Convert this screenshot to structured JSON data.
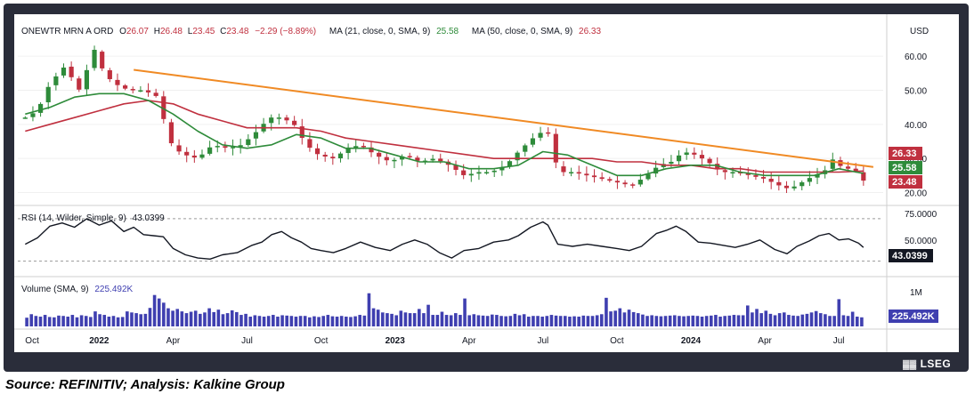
{
  "chart_data": {
    "type": "candlestick",
    "symbol": "ONEWTR MRN A ORD",
    "currency": "USD",
    "ohlc": {
      "o_label": "O",
      "o": "26.07",
      "h_label": "H",
      "h": "26.48",
      "l_label": "L",
      "l": "23.45",
      "c_label": "C",
      "c": "23.48",
      "change": "−2.29 (−8.89%)"
    },
    "ma21": {
      "label": "MA (21, close, 0, SMA, 9)",
      "value": "25.58",
      "color": "#2e8b3a"
    },
    "ma50": {
      "label": "MA (50, close, 0, SMA, 9)",
      "value": "26.33",
      "color": "#c0303f"
    },
    "last_close_tag": "23.48",
    "trendline_color": "#f08a24",
    "price_axis": {
      "ticks": [
        "60.00",
        "50.00",
        "40.00",
        "30.00",
        "20.00"
      ],
      "values": [
        60,
        50,
        40,
        30,
        20
      ],
      "ylim": [
        17,
        65
      ]
    },
    "x_ticks": [
      "Oct",
      "2022",
      "Apr",
      "Jul",
      "Oct",
      "2023",
      "Apr",
      "Jul",
      "Oct",
      "2024",
      "Apr",
      "Jul"
    ],
    "x_tick_pos": [
      0,
      3,
      6,
      9,
      12,
      15,
      18,
      21,
      24,
      27,
      30,
      33
    ],
    "x_range": [
      -0.3,
      34.8
    ],
    "price_path": [
      [
        0,
        42
      ],
      [
        0.5,
        44
      ],
      [
        1,
        52
      ],
      [
        1.6,
        57
      ],
      [
        2.2,
        50
      ],
      [
        2.8,
        62
      ],
      [
        3.2,
        55
      ],
      [
        3.6,
        52
      ],
      [
        4.2,
        50
      ],
      [
        4.8,
        50
      ],
      [
        5.4,
        48
      ],
      [
        5.7,
        39
      ],
      [
        6.0,
        33
      ],
      [
        6.5,
        31
      ],
      [
        7.0,
        30
      ],
      [
        7.6,
        34
      ],
      [
        8.2,
        33
      ],
      [
        8.8,
        34
      ],
      [
        9.4,
        38
      ],
      [
        9.9,
        42
      ],
      [
        10.4,
        42
      ],
      [
        10.9,
        40
      ],
      [
        11.4,
        34
      ],
      [
        11.9,
        31
      ],
      [
        12.5,
        30
      ],
      [
        13.1,
        33
      ],
      [
        13.6,
        34
      ],
      [
        14.2,
        31
      ],
      [
        14.8,
        29
      ],
      [
        15.4,
        31
      ],
      [
        16.0,
        29
      ],
      [
        16.6,
        30
      ],
      [
        17.2,
        28
      ],
      [
        17.8,
        25
      ],
      [
        18.4,
        26
      ],
      [
        18.9,
        26
      ],
      [
        19.5,
        28
      ],
      [
        20.0,
        32
      ],
      [
        20.6,
        36
      ],
      [
        21.0,
        38
      ],
      [
        21.3,
        37
      ],
      [
        21.6,
        26
      ],
      [
        22.2,
        26
      ],
      [
        22.8,
        25
      ],
      [
        23.4,
        24
      ],
      [
        24.0,
        23
      ],
      [
        24.6,
        22
      ],
      [
        25.2,
        25
      ],
      [
        25.7,
        28
      ],
      [
        26.2,
        29
      ],
      [
        26.7,
        32
      ],
      [
        27.2,
        31
      ],
      [
        27.7,
        29
      ],
      [
        28.2,
        26
      ],
      [
        28.8,
        26
      ],
      [
        29.4,
        25
      ],
      [
        30.0,
        24
      ],
      [
        30.6,
        22
      ],
      [
        31.0,
        21
      ],
      [
        31.5,
        23
      ],
      [
        32.0,
        25
      ],
      [
        32.4,
        26
      ],
      [
        32.7,
        30
      ],
      [
        33.2,
        27
      ],
      [
        33.6,
        27
      ],
      [
        34.0,
        23.5
      ]
    ],
    "ma21_path": [
      [
        0,
        43
      ],
      [
        1,
        45
      ],
      [
        2,
        48
      ],
      [
        3,
        49
      ],
      [
        4,
        49
      ],
      [
        5,
        47
      ],
      [
        6,
        43
      ],
      [
        7,
        38
      ],
      [
        8,
        34
      ],
      [
        9,
        33
      ],
      [
        10,
        34
      ],
      [
        11,
        37
      ],
      [
        12,
        36
      ],
      [
        13,
        33
      ],
      [
        14,
        33
      ],
      [
        15,
        31
      ],
      [
        16,
        29
      ],
      [
        17,
        29
      ],
      [
        18,
        27
      ],
      [
        19,
        27
      ],
      [
        20,
        28
      ],
      [
        21,
        32
      ],
      [
        22,
        31
      ],
      [
        23,
        28
      ],
      [
        24,
        25
      ],
      [
        25,
        25
      ],
      [
        26,
        27
      ],
      [
        27,
        28
      ],
      [
        28,
        28
      ],
      [
        29,
        26
      ],
      [
        30,
        25
      ],
      [
        31,
        25
      ],
      [
        32,
        25
      ],
      [
        33,
        27
      ],
      [
        34,
        25.6
      ]
    ],
    "ma50_path": [
      [
        0,
        38
      ],
      [
        1,
        40
      ],
      [
        2,
        42
      ],
      [
        3,
        44
      ],
      [
        4,
        46
      ],
      [
        5,
        47
      ],
      [
        6,
        46
      ],
      [
        7,
        43
      ],
      [
        8,
        41
      ],
      [
        9,
        39
      ],
      [
        10,
        39
      ],
      [
        11,
        39
      ],
      [
        12,
        38
      ],
      [
        13,
        36
      ],
      [
        14,
        35
      ],
      [
        15,
        34
      ],
      [
        16,
        33
      ],
      [
        17,
        32
      ],
      [
        18,
        31
      ],
      [
        19,
        30
      ],
      [
        20,
        30
      ],
      [
        21,
        30
      ],
      [
        22,
        30
      ],
      [
        23,
        30
      ],
      [
        24,
        29
      ],
      [
        25,
        29
      ],
      [
        26,
        28
      ],
      [
        27,
        28
      ],
      [
        28,
        27
      ],
      [
        29,
        27
      ],
      [
        30,
        26
      ],
      [
        31,
        26
      ],
      [
        32,
        26
      ],
      [
        33,
        26
      ],
      [
        34,
        26.3
      ]
    ],
    "trendline": [
      [
        4.4,
        56
      ],
      [
        34.4,
        27.5
      ]
    ],
    "rsi": {
      "label": "RSI (14, Wilder, Simple, 9)",
      "value": "43.0399",
      "ticks": [
        "75.0000",
        "50.0000"
      ],
      "tick_values": [
        75,
        50
      ],
      "ylim": [
        18,
        80
      ],
      "upper": 70,
      "lower": 30,
      "path": [
        [
          0,
          46
        ],
        [
          0.5,
          52
        ],
        [
          1,
          63
        ],
        [
          1.5,
          66
        ],
        [
          2,
          62
        ],
        [
          2.5,
          70
        ],
        [
          3,
          64
        ],
        [
          3.5,
          68
        ],
        [
          4,
          58
        ],
        [
          4.4,
          62
        ],
        [
          4.8,
          55
        ],
        [
          5.2,
          54
        ],
        [
          5.6,
          53
        ],
        [
          6,
          42
        ],
        [
          6.5,
          36
        ],
        [
          7,
          33
        ],
        [
          7.5,
          32
        ],
        [
          8,
          36
        ],
        [
          8.6,
          38
        ],
        [
          9.2,
          45
        ],
        [
          9.6,
          48
        ],
        [
          10,
          55
        ],
        [
          10.4,
          58
        ],
        [
          10.8,
          52
        ],
        [
          11.2,
          48
        ],
        [
          11.6,
          42
        ],
        [
          12,
          40
        ],
        [
          12.5,
          38
        ],
        [
          13,
          42
        ],
        [
          13.6,
          48
        ],
        [
          14.2,
          43
        ],
        [
          14.8,
          40
        ],
        [
          15.3,
          46
        ],
        [
          15.8,
          50
        ],
        [
          16.3,
          46
        ],
        [
          16.8,
          38
        ],
        [
          17.3,
          33
        ],
        [
          17.8,
          40
        ],
        [
          18.4,
          42
        ],
        [
          19,
          48
        ],
        [
          19.6,
          50
        ],
        [
          20.0,
          54
        ],
        [
          20.5,
          62
        ],
        [
          21.0,
          67
        ],
        [
          21.2,
          64
        ],
        [
          21.6,
          46
        ],
        [
          22.2,
          44
        ],
        [
          22.8,
          46
        ],
        [
          23.4,
          44
        ],
        [
          24,
          42
        ],
        [
          24.5,
          40
        ],
        [
          25,
          44
        ],
        [
          25.6,
          56
        ],
        [
          26,
          59
        ],
        [
          26.4,
          63
        ],
        [
          26.8,
          58
        ],
        [
          27.3,
          48
        ],
        [
          27.8,
          47
        ],
        [
          28.3,
          45
        ],
        [
          28.8,
          43
        ],
        [
          29.3,
          46
        ],
        [
          29.8,
          50
        ],
        [
          30.4,
          41
        ],
        [
          30.9,
          37
        ],
        [
          31.3,
          44
        ],
        [
          31.8,
          49
        ],
        [
          32.2,
          54
        ],
        [
          32.6,
          56
        ],
        [
          33,
          50
        ],
        [
          33.4,
          51
        ],
        [
          33.8,
          47
        ],
        [
          34.0,
          43
        ]
      ]
    },
    "volume": {
      "label": "Volume (SMA, 9)",
      "value": "225.492K",
      "tick": "1M",
      "tick_value": 1000000,
      "ymax": 1300000,
      "bars": [
        250000,
        350000,
        300000,
        280000,
        330000,
        270000,
        260000,
        310000,
        300000,
        280000,
        330000,
        260000,
        320000,
        300000,
        270000,
        430000,
        350000,
        330000,
        280000,
        300000,
        260000,
        270000,
        430000,
        400000,
        380000,
        350000,
        360000,
        530000,
        900000,
        800000,
        680000,
        520000,
        450000,
        500000,
        430000,
        380000,
        420000,
        450000,
        360000,
        400000,
        520000,
        410000,
        480000,
        350000,
        380000,
        460000,
        410000,
        330000,
        360000,
        280000,
        320000,
        300000,
        280000,
        300000,
        330000,
        280000,
        320000,
        310000,
        300000,
        280000,
        300000,
        300000,
        260000,
        290000,
        270000,
        300000,
        330000,
        290000,
        280000,
        300000,
        280000,
        270000,
        290000,
        330000,
        310000,
        950000,
        520000,
        480000,
        400000,
        380000,
        360000,
        320000,
        450000,
        400000,
        380000,
        380000,
        500000,
        380000,
        620000,
        330000,
        330000,
        420000,
        330000,
        320000,
        380000,
        330000,
        800000,
        320000,
        350000,
        320000,
        310000,
        300000,
        340000,
        330000,
        300000,
        290000,
        300000,
        360000,
        320000,
        350000,
        280000,
        300000,
        300000,
        280000,
        300000,
        330000,
        310000,
        300000,
        300000,
        280000,
        290000,
        280000,
        310000,
        300000,
        300000,
        320000,
        350000,
        820000,
        430000,
        450000,
        520000,
        400000,
        480000,
        410000,
        380000,
        340000,
        300000,
        320000,
        300000,
        290000,
        300000,
        310000,
        320000,
        300000,
        290000,
        300000,
        310000,
        300000,
        280000,
        300000,
        310000,
        330000,
        280000,
        300000,
        310000,
        330000,
        320000,
        320000,
        600000,
        400000,
        500000,
        380000,
        450000,
        360000,
        320000,
        380000,
        400000,
        330000,
        310000,
        300000,
        340000,
        360000,
        400000,
        440000,
        380000,
        350000,
        300000,
        300000,
        780000,
        320000,
        300000,
        420000,
        280000,
        260000
      ]
    }
  },
  "branding": {
    "vendor": "LSEG"
  },
  "source_note": "Source: REFINITIV; Analysis: Kalkine Group"
}
